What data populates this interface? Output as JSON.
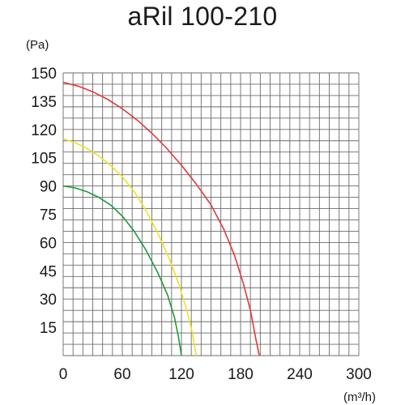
{
  "chart_data": {
    "type": "line",
    "title": "aRil 100-210",
    "ylabel": "(Pa)",
    "xlabel": "(m³/h)",
    "xlim": [
      0,
      300
    ],
    "ylim": [
      0,
      150
    ],
    "x_ticks": [
      "0",
      "60",
      "120",
      "180",
      "240",
      "300"
    ],
    "y_ticks": [
      "15",
      "30",
      "45",
      "60",
      "75",
      "90",
      "105",
      "120",
      "135",
      "150"
    ],
    "grid": true,
    "series": [
      {
        "color": "#1e9a3c",
        "points": [
          [
            0,
            90
          ],
          [
            12,
            89
          ],
          [
            24,
            87
          ],
          [
            36,
            84
          ],
          [
            48,
            80
          ],
          [
            60,
            74
          ],
          [
            72,
            66
          ],
          [
            84,
            56
          ],
          [
            96,
            44
          ],
          [
            106,
            32
          ],
          [
            113,
            20
          ],
          [
            117,
            10
          ],
          [
            120,
            0
          ]
        ]
      },
      {
        "color": "#f2e024",
        "points": [
          [
            0,
            115
          ],
          [
            12,
            113
          ],
          [
            24,
            110
          ],
          [
            36,
            106
          ],
          [
            48,
            101
          ],
          [
            60,
            95
          ],
          [
            72,
            87
          ],
          [
            84,
            77
          ],
          [
            96,
            65
          ],
          [
            108,
            51
          ],
          [
            118,
            37
          ],
          [
            126,
            23
          ],
          [
            131,
            12
          ],
          [
            135,
            0
          ]
        ]
      },
      {
        "color": "#e0393b",
        "points": [
          [
            0,
            145
          ],
          [
            15,
            143
          ],
          [
            30,
            140
          ],
          [
            45,
            136
          ],
          [
            60,
            131
          ],
          [
            75,
            125
          ],
          [
            90,
            118
          ],
          [
            105,
            110
          ],
          [
            120,
            101
          ],
          [
            135,
            91
          ],
          [
            150,
            80
          ],
          [
            163,
            67
          ],
          [
            174,
            53
          ],
          [
            183,
            38
          ],
          [
            190,
            24
          ],
          [
            195,
            10
          ],
          [
            199,
            0
          ]
        ]
      }
    ]
  }
}
